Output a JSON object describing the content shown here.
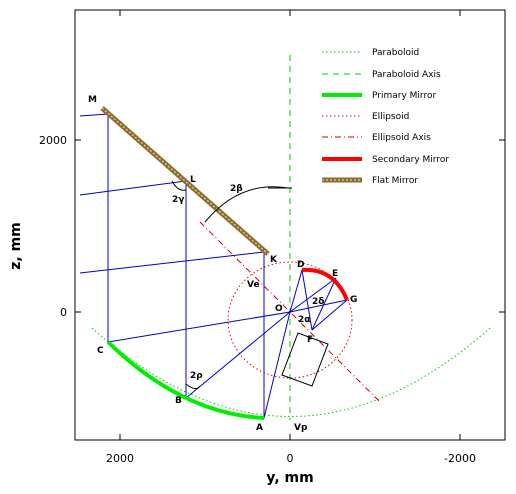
{
  "axes": {
    "xlabel": "y, mm",
    "ylabel": "z, mm",
    "x_ticks": [
      "2000",
      "0",
      "-2000"
    ],
    "y_ticks": [
      "2000",
      "0"
    ]
  },
  "legend": [
    {
      "key": "paraboloid",
      "label": "Paraboloid",
      "color": "#00cc00",
      "dash": "dotted"
    },
    {
      "key": "paraboloid_axis",
      "label": "Paraboloid Axis",
      "color": "#00cc00",
      "dash": "dashed"
    },
    {
      "key": "primary_mirror",
      "label": "Primary Mirror",
      "color": "#00ee00",
      "dash": "solid"
    },
    {
      "key": "ellipsoid",
      "label": "Ellipsoid",
      "color": "#dd0000",
      "dash": "dotted"
    },
    {
      "key": "ellipsoid_axis",
      "label": "Ellipsoid Axis",
      "color": "#cc0000",
      "dash": "dashdot"
    },
    {
      "key": "secondary_mirror",
      "label": "Secondary Mirror",
      "color": "#ff0000",
      "dash": "solid"
    },
    {
      "key": "flat_mirror",
      "label": "Flat Mirror",
      "color": "#8b6b2e",
      "dash": "solid"
    }
  ],
  "points": {
    "M": "M",
    "L": "L",
    "K": "K",
    "C": "C",
    "B": "B",
    "A": "A",
    "D": "D",
    "E": "E",
    "G": "G",
    "F": "F",
    "O": "O",
    "Ve": "Ve",
    "Vp": "Vp"
  },
  "angles": {
    "two_beta": "2β",
    "two_gamma": "2γ",
    "two_rho": "2ρ",
    "two_delta": "2δ",
    "two_alpha": "2α"
  },
  "colors": {
    "rays": "#0000cc",
    "frame": "#000000"
  }
}
